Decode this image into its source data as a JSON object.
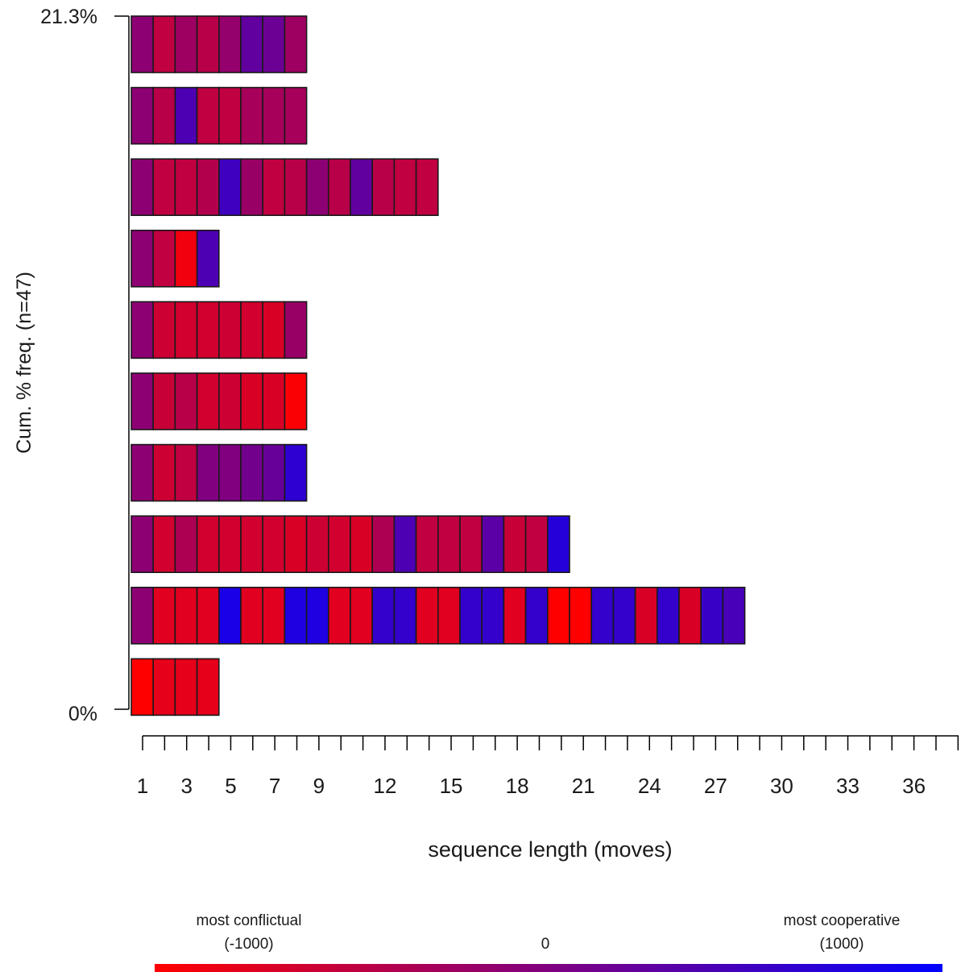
{
  "chart_data": {
    "type": "sequence-index-plot",
    "title": "",
    "xlabel": "sequence length (moves)",
    "ylabel": "Cum. % freq. (n=47)",
    "y_tick_labels": [
      "0%",
      "21.3%"
    ],
    "x_ticks": [
      1,
      3,
      5,
      7,
      9,
      12,
      15,
      18,
      21,
      24,
      27,
      30,
      33,
      36
    ],
    "x_tick_marks": [
      1,
      38
    ],
    "legend": {
      "low_label": "most conflictual",
      "low_value": "(-1000)",
      "mid_label": "0",
      "high_label": "most cooperative",
      "high_value": "(1000)",
      "low_color": "#ff0000",
      "mid_color": "#800080",
      "high_color": "#0000ff"
    },
    "sequences": [
      {
        "states": [
          0.45,
          0.25,
          0.38,
          0.28,
          0.42,
          0.62,
          0.58,
          0.38
        ]
      },
      {
        "states": [
          0.45,
          0.28,
          0.7,
          0.25,
          0.25,
          0.35,
          0.35,
          0.35
        ]
      },
      {
        "states": [
          0.45,
          0.25,
          0.25,
          0.3,
          0.75,
          0.4,
          0.25,
          0.28,
          0.45,
          0.28,
          0.62,
          0.28,
          0.25,
          0.25
        ]
      },
      {
        "states": [
          0.45,
          0.25,
          0.05,
          0.7
        ]
      },
      {
        "states": [
          0.45,
          0.2,
          0.18,
          0.18,
          0.2,
          0.18,
          0.15,
          0.4
        ]
      },
      {
        "states": [
          0.45,
          0.22,
          0.28,
          0.18,
          0.2,
          0.15,
          0.15,
          0.02
        ]
      },
      {
        "states": [
          0.45,
          0.2,
          0.25,
          0.5,
          0.5,
          0.55,
          0.6,
          0.82
        ]
      },
      {
        "states": [
          0.45,
          0.18,
          0.32,
          0.18,
          0.18,
          0.18,
          0.18,
          0.15,
          0.2,
          0.18,
          0.15,
          0.32,
          0.7,
          0.25,
          0.25,
          0.25,
          0.65,
          0.22,
          0.25,
          0.85
        ]
      },
      {
        "states": [
          0.45,
          0.12,
          0.12,
          0.12,
          0.9,
          0.12,
          0.12,
          0.88,
          0.88,
          0.12,
          0.12,
          0.8,
          0.8,
          0.12,
          0.12,
          0.8,
          0.8,
          0.12,
          0.8,
          0.0,
          0.0,
          0.8,
          0.8,
          0.15,
          0.8,
          0.15,
          0.78,
          0.72
        ]
      },
      {
        "states": [
          0.0,
          0.1,
          0.1,
          0.1
        ]
      }
    ]
  }
}
